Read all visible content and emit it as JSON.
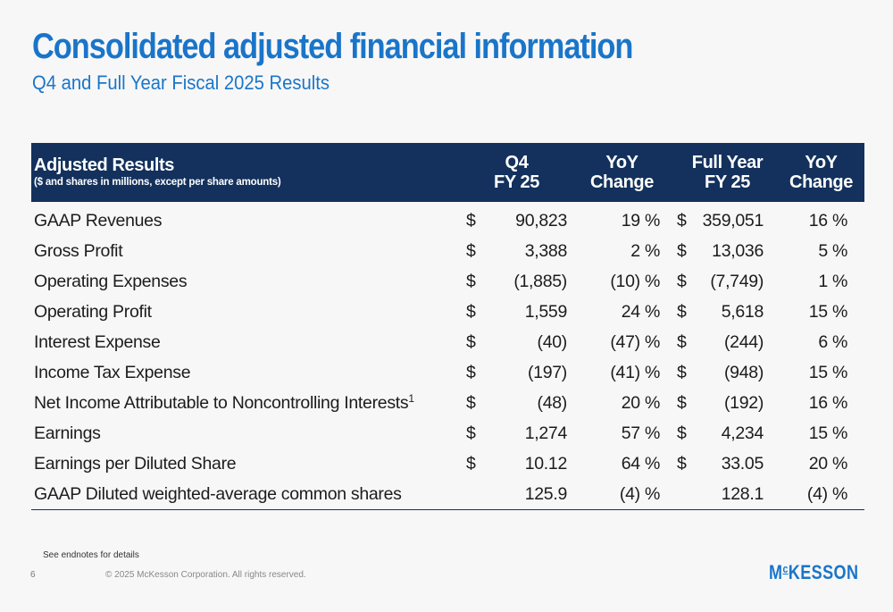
{
  "header": {
    "title": "Consolidated adjusted financial information",
    "subtitle": "Q4 and Full Year Fiscal 2025 Results"
  },
  "table": {
    "title": "Adjusted Results",
    "subtitle": "($ and shares in millions, except per share amounts)",
    "columns": {
      "q4_line1": "Q4",
      "q4_line2": "FY 25",
      "q4_yoy_line1": "YoY",
      "q4_yoy_line2": "Change",
      "fy_line1": "Full Year",
      "fy_line2": "FY 25",
      "fy_yoy_line1": "YoY",
      "fy_yoy_line2": "Change"
    },
    "rows": [
      {
        "label": "GAAP Revenues",
        "footnote": "",
        "q4_dollar": "$",
        "q4": "90,823",
        "q4_yoy": "19 %",
        "fy_dollar": "$",
        "fy": "359,051",
        "fy_yoy": "16 %"
      },
      {
        "label": "Gross Profit",
        "footnote": "",
        "q4_dollar": "$",
        "q4": "3,388",
        "q4_yoy": "2 %",
        "fy_dollar": "$",
        "fy": "13,036",
        "fy_yoy": "5 %"
      },
      {
        "label": "Operating Expenses",
        "footnote": "",
        "q4_dollar": "$",
        "q4": "(1,885)",
        "q4_yoy": "(10) %",
        "fy_dollar": "$",
        "fy": "(7,749)",
        "fy_yoy": "1 %"
      },
      {
        "label": "Operating Profit",
        "footnote": "",
        "q4_dollar": "$",
        "q4": "1,559",
        "q4_yoy": "24 %",
        "fy_dollar": "$",
        "fy": "5,618",
        "fy_yoy": "15 %"
      },
      {
        "label": "Interest Expense",
        "footnote": "",
        "q4_dollar": "$",
        "q4": "(40)",
        "q4_yoy": "(47) %",
        "fy_dollar": "$",
        "fy": "(244)",
        "fy_yoy": "6 %"
      },
      {
        "label": "Income Tax Expense",
        "footnote": "",
        "q4_dollar": "$",
        "q4": "(197)",
        "q4_yoy": "(41) %",
        "fy_dollar": "$",
        "fy": "(948)",
        "fy_yoy": "15 %"
      },
      {
        "label": "Net Income Attributable to Noncontrolling Interests",
        "footnote": "1",
        "q4_dollar": "$",
        "q4": "(48)",
        "q4_yoy": "20 %",
        "fy_dollar": "$",
        "fy": "(192)",
        "fy_yoy": "16 %"
      },
      {
        "label": "Earnings",
        "footnote": "",
        "q4_dollar": "$",
        "q4": "1,274",
        "q4_yoy": "57 %",
        "fy_dollar": "$",
        "fy": "4,234",
        "fy_yoy": "15 %"
      },
      {
        "label": "Earnings per Diluted Share",
        "footnote": "",
        "q4_dollar": "$",
        "q4": "10.12",
        "q4_yoy": "64 %",
        "fy_dollar": "$",
        "fy": "33.05",
        "fy_yoy": "20 %"
      },
      {
        "label": "GAAP Diluted weighted-average common shares",
        "footnote": "",
        "q4_dollar": "",
        "q4": "125.9",
        "q4_yoy": "(4) %",
        "fy_dollar": "",
        "fy": "128.1",
        "fy_yoy": "(4) %"
      }
    ]
  },
  "footer": {
    "endnote": "See endnotes for details",
    "page_number": "6",
    "copyright": "© 2025 McKesson Corporation. All rights reserved.",
    "logo_prefix": "M",
    "logo_c": "c",
    "logo_suffix": "KESSON"
  },
  "colors": {
    "accent_blue": "#1a75c9",
    "header_navy": "#13315c",
    "background": "#f7f7f7"
  }
}
